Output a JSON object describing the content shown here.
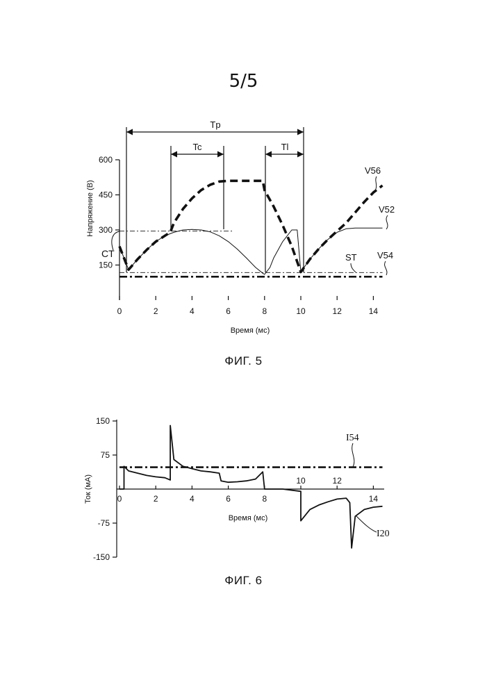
{
  "page_number": "5/5",
  "fig5": {
    "caption": "ФИГ. 5",
    "xlabel": "Время (мс)",
    "ylabel": "Напряжение (В)",
    "xticks": [
      "0",
      "2",
      "4",
      "6",
      "8",
      "10",
      "12",
      "14"
    ],
    "yticks": [
      "150",
      "300",
      "450",
      "600"
    ],
    "dims": {
      "tp": "Tp",
      "tc": "Tc",
      "tl": "Tl"
    },
    "callouts": {
      "ct": "CT",
      "st": "ST",
      "v56": "V56",
      "v52": "V52",
      "v54": "V54"
    }
  },
  "fig6": {
    "caption": "ФИГ. 6",
    "xlabel": "Время (мс)",
    "ylabel": "Ток (мА)",
    "xticks_below": [
      "0",
      "2",
      "4",
      "6",
      "8",
      "14"
    ],
    "xticks_above": [
      "10",
      "12"
    ],
    "yticks": [
      "150",
      "75",
      "-75",
      "-150"
    ],
    "callouts": {
      "i54": "I54",
      "i20": "I20"
    }
  },
  "chart_data": [
    {
      "type": "line",
      "xlabel": "Время (мс)",
      "ylabel": "Напряжение (В)",
      "xlim": [
        0,
        14.5
      ],
      "ylim": [
        0,
        600
      ],
      "series": [
        {
          "name": "V52",
          "style": "solid-thin",
          "x": [
            0,
            0.3,
            0.5,
            1.0,
            1.5,
            2.0,
            2.5,
            3.0,
            3.5,
            4.0,
            4.5,
            5.0,
            5.5,
            6.0,
            6.5,
            7.0,
            7.5,
            7.9,
            8.0,
            8.3,
            8.5,
            9.0,
            9.5,
            9.8,
            10.0,
            10.5,
            11.0,
            11.5,
            12.0,
            12.5,
            13.0,
            13.5,
            14.0,
            14.5
          ],
          "y": [
            230,
            170,
            130,
            175,
            215,
            250,
            275,
            290,
            300,
            302,
            300,
            292,
            275,
            250,
            218,
            180,
            140,
            115,
            110,
            140,
            180,
            250,
            300,
            300,
            120,
            175,
            220,
            260,
            290,
            305,
            308,
            308,
            308,
            308
          ]
        },
        {
          "name": "V56",
          "style": "dashed-thick",
          "x": [
            0,
            0.3,
            0.5,
            1.0,
            1.5,
            2.0,
            2.5,
            2.8,
            3.0,
            3.5,
            4.0,
            4.5,
            5.0,
            5.5,
            6.0,
            6.5,
            7.0,
            7.5,
            7.9,
            8.0,
            8.5,
            9.0,
            9.5,
            10.0,
            10.5,
            11.0,
            11.5,
            12.0,
            12.5,
            13.0,
            13.5,
            14.0,
            14.5
          ],
          "y": [
            230,
            170,
            130,
            175,
            215,
            250,
            275,
            290,
            330,
            390,
            435,
            470,
            493,
            507,
            510,
            510,
            510,
            510,
            510,
            470,
            400,
            320,
            230,
            120,
            175,
            220,
            260,
            295,
            330,
            375,
            420,
            460,
            490
          ]
        },
        {
          "name": "V54",
          "style": "dash-dot-thick",
          "x": [
            0,
            14.5
          ],
          "y": [
            100,
            100
          ]
        },
        {
          "name": "CT",
          "style": "dash-dot-thin",
          "x": [
            0,
            6.3
          ],
          "y": [
            295,
            295
          ]
        },
        {
          "name": "ST",
          "style": "dash-dot-thin",
          "x": [
            0,
            14.5
          ],
          "y": [
            118,
            118
          ]
        }
      ],
      "spans": [
        {
          "label": "Tp",
          "x": [
            0.4,
            10.0
          ]
        },
        {
          "label": "Tc",
          "x": [
            2.8,
            5.7
          ]
        },
        {
          "label": "Tl",
          "x": [
            7.9,
            10.0
          ]
        }
      ]
    },
    {
      "type": "line",
      "xlabel": "Время (мс)",
      "ylabel": "Ток (мА)",
      "xlim": [
        0,
        14.5
      ],
      "ylim": [
        -150,
        150
      ],
      "series": [
        {
          "name": "I54",
          "style": "dash-dot-thick",
          "x": [
            0,
            14.5
          ],
          "y": [
            48,
            48
          ]
        },
        {
          "name": "I20",
          "style": "solid",
          "x": [
            0,
            0.25,
            0.25,
            0.5,
            1.0,
            1.5,
            2.0,
            2.5,
            2.8,
            2.8,
            3.0,
            3.5,
            4.0,
            4.5,
            5.0,
            5.5,
            5.6,
            6.0,
            6.5,
            7.0,
            7.5,
            7.9,
            8.0,
            9.0,
            10.0,
            10.0,
            10.5,
            11.0,
            11.5,
            12.0,
            12.5,
            12.7,
            12.8,
            13.0,
            13.5,
            14.0,
            14.5
          ],
          "y": [
            0,
            0,
            50,
            40,
            35,
            30,
            27,
            25,
            20,
            140,
            65,
            50,
            45,
            40,
            38,
            35,
            18,
            15,
            16,
            18,
            22,
            38,
            0,
            0,
            -5,
            -70,
            -45,
            -35,
            -28,
            -22,
            -20,
            -30,
            -130,
            -60,
            -45,
            -40,
            -38
          ]
        }
      ]
    }
  ]
}
